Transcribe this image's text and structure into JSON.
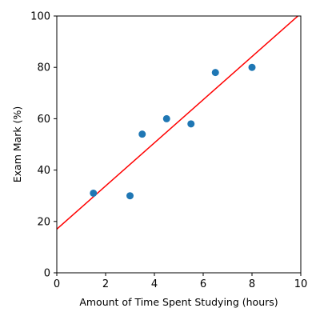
{
  "chart_data": {
    "type": "scatter",
    "title": "",
    "xlabel": "Amount of Time Spent Studying (hours)",
    "ylabel": "Exam Mark (%)",
    "xlim": [
      0,
      10
    ],
    "ylim": [
      0,
      100
    ],
    "xticks": [
      0,
      2,
      4,
      6,
      8,
      10
    ],
    "yticks": [
      0,
      20,
      40,
      60,
      80,
      100
    ],
    "grid": false,
    "series": [
      {
        "type": "scatter",
        "color": "#1f77b4",
        "points": [
          {
            "x": 1.5,
            "y": 31
          },
          {
            "x": 3.0,
            "y": 30
          },
          {
            "x": 3.5,
            "y": 54
          },
          {
            "x": 4.5,
            "y": 60
          },
          {
            "x": 5.5,
            "y": 58
          },
          {
            "x": 6.5,
            "y": 78
          },
          {
            "x": 8.0,
            "y": 80
          }
        ]
      },
      {
        "type": "line",
        "color": "#ff0000",
        "points": [
          {
            "x": 0,
            "y": 17
          },
          {
            "x": 10,
            "y": 101
          }
        ]
      }
    ]
  }
}
